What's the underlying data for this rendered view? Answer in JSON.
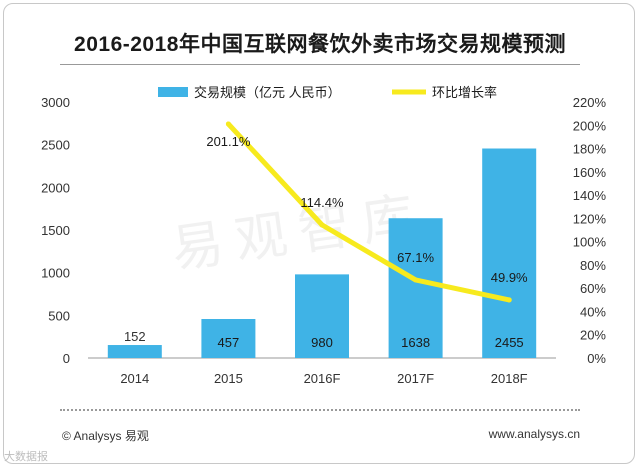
{
  "chart_data": {
    "type": "bar+line",
    "title": "2016-2018年中国互联网餐饮外卖市场交易规模预测",
    "categories": [
      "2014",
      "2015",
      "2016F",
      "2017F",
      "2018F"
    ],
    "series": [
      {
        "name": "交易规模（亿元 人民币）",
        "type": "bar",
        "axis": "left",
        "values": [
          152,
          457,
          980,
          1638,
          2455
        ],
        "labels": [
          "152",
          "457",
          "980",
          "1638",
          "2455"
        ]
      },
      {
        "name": "环比增长率",
        "type": "line",
        "axis": "right",
        "points": [
          {
            "category": "2015",
            "value": 201.1
          },
          {
            "category": "2016F",
            "value": 114.4
          },
          {
            "category": "2017F",
            "value": 67.1
          },
          {
            "category": "2018F",
            "value": 49.9
          }
        ],
        "labels": [
          "201.1%",
          "114.4%",
          "67.1%",
          "49.9%"
        ]
      }
    ],
    "y_left": {
      "min": 0,
      "max": 3000,
      "ticks": [
        "0",
        "500",
        "1000",
        "1500",
        "2000",
        "2500",
        "3000"
      ]
    },
    "y_right": {
      "min": 0,
      "max": 220,
      "ticks": [
        "0%",
        "20%",
        "40%",
        "60%",
        "80%",
        "100%",
        "120%",
        "140%",
        "160%",
        "180%",
        "200%",
        "220%"
      ]
    },
    "colors": {
      "bar": "#3fb3e6",
      "line": "#f7ea1e",
      "text": "#333333",
      "axis": "#999999"
    }
  },
  "watermark": "易观智库",
  "footer": {
    "left": "© Analysys 易观",
    "right": "www.analysys.cn"
  },
  "corner_mark": "大数据报"
}
